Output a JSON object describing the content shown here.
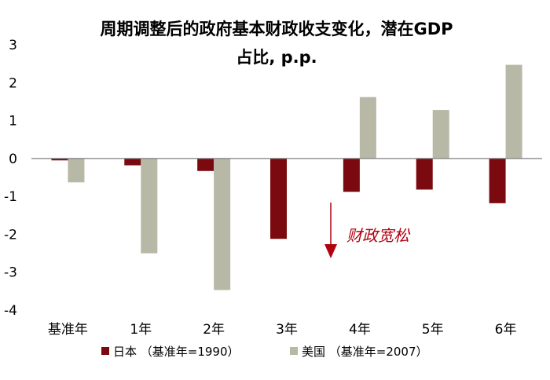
{
  "chart_data": {
    "type": "bar",
    "title": [
      "周期调整后的政府基本财政收支变化，潜在GDP",
      "占比, p.p."
    ],
    "categories": [
      "基准年",
      "1年",
      "2年",
      "3年",
      "4年",
      "5年",
      "6年"
    ],
    "series": [
      {
        "name": "日本 （基准年=1990）",
        "color": "#7a0a0f",
        "values": [
          -0.05,
          -0.18,
          -0.33,
          -2.12,
          -0.88,
          -0.82,
          -1.18
        ]
      },
      {
        "name": "美国 （基准年=2007）",
        "color": "#b8b8a6",
        "values": [
          -0.63,
          -2.5,
          -3.47,
          0.0,
          1.62,
          1.28,
          2.47
        ]
      }
    ],
    "yticks": [
      3,
      2,
      1,
      0,
      -1,
      -2,
      -3,
      -4
    ],
    "ytick_labels": [
      "3",
      "2",
      "1",
      "0",
      "-1",
      "-2",
      "-3",
      "-4"
    ],
    "ylim": [
      -4,
      3
    ],
    "grid": false,
    "legend_position": "bottom",
    "annotation": {
      "text": "财政宽松",
      "color": "#b2000f"
    }
  }
}
